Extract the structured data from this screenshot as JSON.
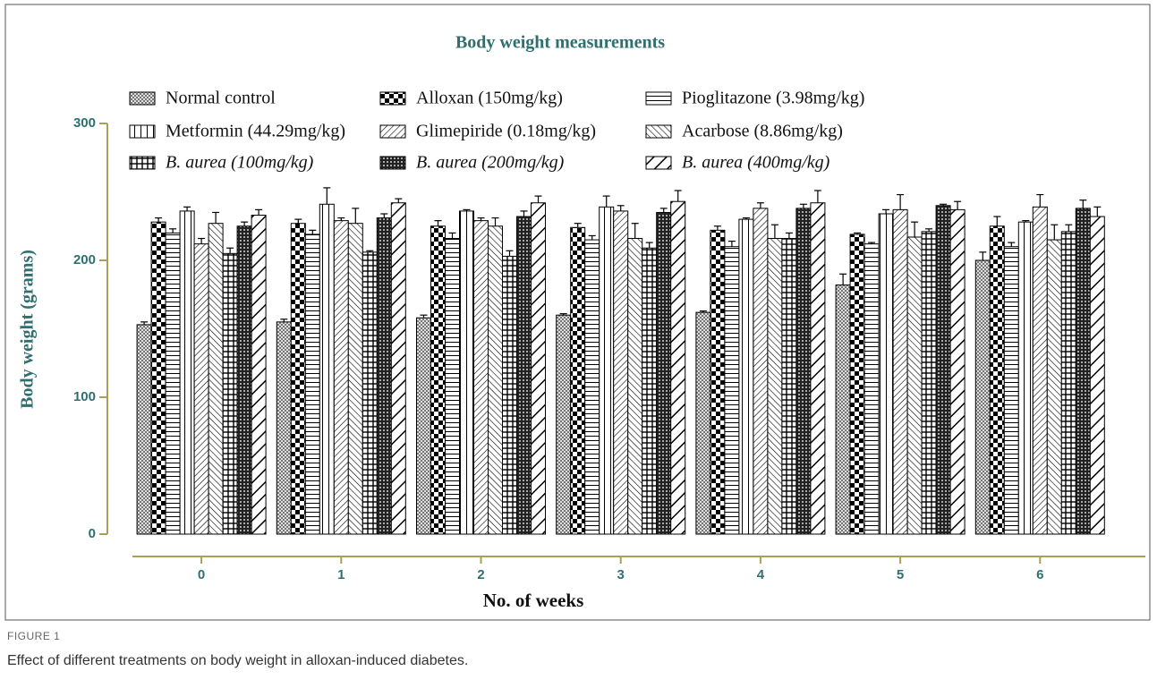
{
  "chart_data": {
    "type": "bar",
    "title": "Body weight measurements",
    "xlabel": "No. of weeks",
    "ylabel": "Body weight (grams)",
    "categories": [
      "0",
      "1",
      "2",
      "3",
      "4",
      "5",
      "6"
    ],
    "ylim": [
      0,
      300
    ],
    "yticks": [
      0,
      100,
      200,
      300
    ],
    "grid": false,
    "series": [
      {
        "name": "Normal control",
        "color": "#000000",
        "values": [
          153,
          155,
          158,
          160,
          162,
          182,
          200
        ],
        "errors": [
          2,
          2,
          2,
          1,
          1,
          8,
          6
        ]
      },
      {
        "name": "Alloxan (150mg/kg)",
        "color": "#000000",
        "values": [
          228,
          227,
          225,
          224,
          222,
          219,
          225
        ],
        "errors": [
          3,
          3,
          4,
          3,
          3,
          1,
          7
        ]
      },
      {
        "name": "Pioglitazone (3.98mg/kg)",
        "color": "#000000",
        "values": [
          220,
          219,
          216,
          215,
          210,
          212,
          210
        ],
        "errors": [
          3,
          3,
          4,
          3,
          4,
          1,
          3
        ]
      },
      {
        "name": "Metformin (44.29mg/kg)",
        "color": "#000000",
        "values": [
          236,
          241,
          236,
          239,
          230,
          234,
          228
        ],
        "errors": [
          3,
          12,
          1,
          8,
          1,
          3,
          1
        ]
      },
      {
        "name": "Glimepiride (0.18mg/kg)",
        "color": "#000000",
        "values": [
          212,
          229,
          229,
          236,
          238,
          237,
          239
        ],
        "errors": [
          4,
          2,
          2,
          4,
          4,
          11,
          9
        ]
      },
      {
        "name": "Acarbose (8.86mg/kg)",
        "color": "#000000",
        "values": [
          227,
          227,
          225,
          216,
          216,
          217,
          215
        ],
        "errors": [
          8,
          11,
          6,
          11,
          10,
          11,
          11
        ]
      },
      {
        "name": "B. aurea (100mg/kg)",
        "color": "#000000",
        "values": [
          205,
          206,
          203,
          209,
          216,
          221,
          221
        ],
        "errors": [
          4,
          1,
          4,
          4,
          4,
          2,
          5
        ]
      },
      {
        "name": "B. aurea (200mg/kg)",
        "color": "#000000",
        "values": [
          225,
          231,
          232,
          235,
          238,
          240,
          238
        ],
        "errors": [
          3,
          3,
          4,
          3,
          3,
          1,
          6
        ]
      },
      {
        "name": "B. aurea (400mg/kg)",
        "color": "#000000",
        "values": [
          233,
          242,
          242,
          243,
          242,
          237,
          232
        ],
        "errors": [
          4,
          3,
          5,
          8,
          9,
          6,
          7
        ]
      }
    ]
  },
  "caption": {
    "label": "FIGURE 1",
    "text": "Effect of different treatments on body weight in alloxan-induced diabetes."
  }
}
